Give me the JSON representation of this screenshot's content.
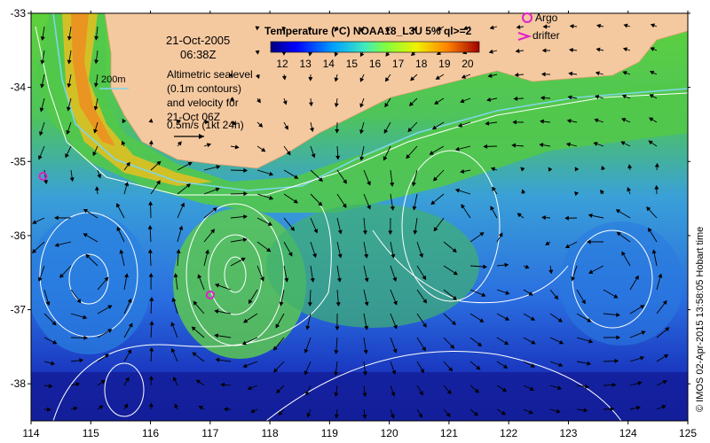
{
  "map": {
    "x_axis": {
      "ticks": [
        "114",
        "115",
        "116",
        "117",
        "118",
        "119",
        "120",
        "121",
        "122",
        "123",
        "124",
        "125"
      ],
      "range": [
        114,
        125
      ]
    },
    "y_axis": {
      "ticks": [
        "-33",
        "-34",
        "-35",
        "-36",
        "-37",
        "-38"
      ],
      "range": [
        -38.5,
        -33
      ]
    }
  },
  "annotations": {
    "date": "21-Oct-2005",
    "time": "06:38Z",
    "contour_note_lines": [
      "Altimetric sealevel",
      "(0.1m contours)",
      "and velocity for",
      "21-Oct 06Z"
    ],
    "velocity_scale": "0.5m/s (1kt 24h)",
    "isobath_label": "200m"
  },
  "colorbar": {
    "title": "Temperature (°C) NOAA18_L3U 5% ql>=2",
    "ticks": [
      "12",
      "13",
      "14",
      "15",
      "16",
      "17",
      "18",
      "19",
      "20"
    ],
    "range": [
      11.5,
      20.5
    ]
  },
  "legend": {
    "argo_label": "Argo",
    "drifter_label": "drifter"
  },
  "markers": {
    "argo": [
      {
        "lon": 114.2,
        "lat": -35.2
      },
      {
        "lon": 117.0,
        "lat": -36.8
      }
    ]
  },
  "credit": "© IMOS 02-Apr-2015 13:58:05 Hobart time",
  "colors": {
    "land": "#f5c9a0",
    "contour": "#ffffff",
    "isobath": "#7fd6e8",
    "marker": "#e020c8",
    "arrow": "#000000"
  }
}
